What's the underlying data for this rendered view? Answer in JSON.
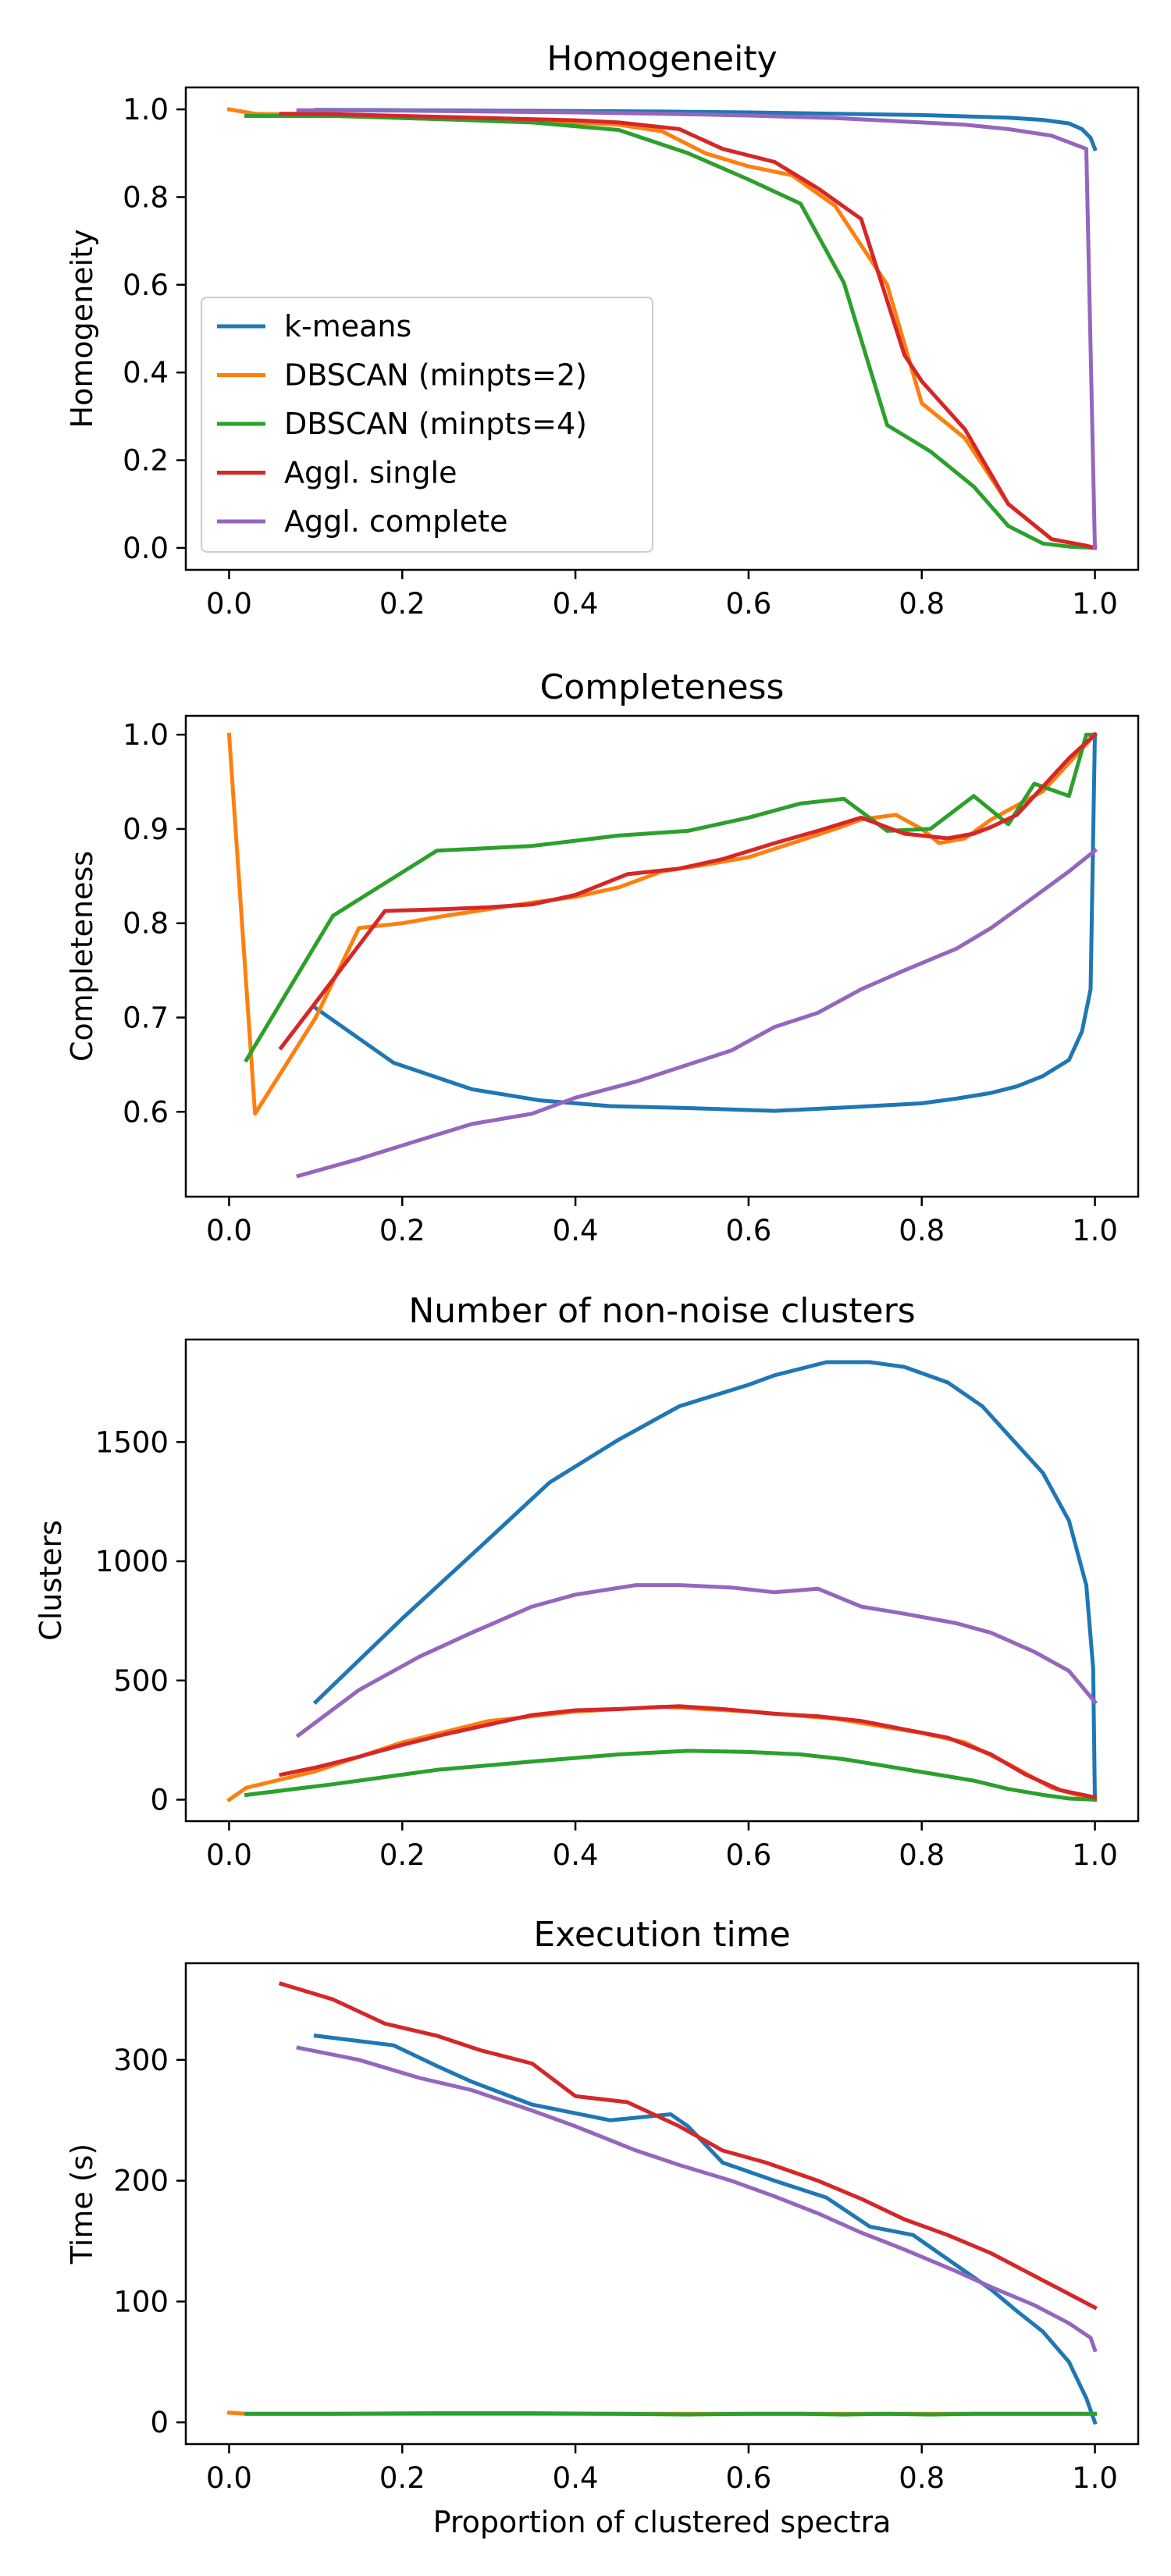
{
  "chart_data": [
    {
      "type": "line",
      "title": "Homogeneity",
      "xlabel": "",
      "ylabel": "Homogeneity",
      "xlim": [
        -0.05,
        1.05
      ],
      "ylim": [
        -0.05,
        1.05
      ],
      "xticks": [
        0.0,
        0.2,
        0.4,
        0.6,
        0.8,
        1.0
      ],
      "xtick_labels": [
        "0.0",
        "0.2",
        "0.4",
        "0.6",
        "0.8",
        "1.0"
      ],
      "yticks": [
        0.0,
        0.2,
        0.4,
        0.6,
        0.8,
        1.0
      ],
      "ytick_labels": [
        "0.0",
        "0.2",
        "0.4",
        "0.6",
        "0.8",
        "1.0"
      ],
      "grid": false,
      "legend": "center-left",
      "series": [
        {
          "name": "k-means",
          "color": "#1f77b4",
          "x": [
            0.1,
            0.2,
            0.3,
            0.4,
            0.5,
            0.6,
            0.7,
            0.8,
            0.9,
            0.94,
            0.97,
            0.985,
            0.995,
            1.0
          ],
          "y": [
            0.999,
            0.998,
            0.997,
            0.996,
            0.995,
            0.993,
            0.99,
            0.987,
            0.981,
            0.976,
            0.968,
            0.955,
            0.935,
            0.91
          ]
        },
        {
          "name": "DBSCAN (minpts=2)",
          "color": "#ff7f0e",
          "x": [
            0.0,
            0.03,
            0.15,
            0.2,
            0.3,
            0.35,
            0.4,
            0.45,
            0.5,
            0.55,
            0.6,
            0.65,
            0.7,
            0.72,
            0.76,
            0.8,
            0.85,
            0.9,
            0.95,
            1.0
          ],
          "y": [
            1.0,
            0.99,
            0.985,
            0.98,
            0.975,
            0.975,
            0.97,
            0.965,
            0.95,
            0.9,
            0.87,
            0.85,
            0.78,
            0.72,
            0.6,
            0.33,
            0.25,
            0.1,
            0.02,
            0.0
          ]
        },
        {
          "name": "DBSCAN (minpts=4)",
          "color": "#2ca02c",
          "x": [
            0.02,
            0.12,
            0.24,
            0.35,
            0.45,
            0.53,
            0.6,
            0.66,
            0.71,
            0.76,
            0.81,
            0.86,
            0.9,
            0.94,
            0.97,
            1.0
          ],
          "y": [
            0.985,
            0.985,
            0.978,
            0.97,
            0.953,
            0.9,
            0.84,
            0.785,
            0.605,
            0.28,
            0.22,
            0.14,
            0.05,
            0.01,
            0.003,
            0.0
          ]
        },
        {
          "name": "Aggl. single",
          "color": "#d62728",
          "x": [
            0.06,
            0.1,
            0.2,
            0.3,
            0.4,
            0.45,
            0.52,
            0.57,
            0.63,
            0.68,
            0.73,
            0.78,
            0.8,
            0.85,
            0.9,
            0.95,
            0.99,
            1.0
          ],
          "y": [
            0.99,
            0.99,
            0.985,
            0.98,
            0.975,
            0.97,
            0.955,
            0.91,
            0.88,
            0.82,
            0.75,
            0.44,
            0.38,
            0.27,
            0.1,
            0.02,
            0.005,
            0.0
          ]
        },
        {
          "name": "Aggl. complete",
          "color": "#9467bd",
          "x": [
            0.08,
            0.2,
            0.3,
            0.4,
            0.5,
            0.6,
            0.7,
            0.8,
            0.85,
            0.9,
            0.95,
            0.99,
            1.0
          ],
          "y": [
            0.998,
            0.997,
            0.995,
            0.993,
            0.99,
            0.986,
            0.98,
            0.97,
            0.965,
            0.955,
            0.94,
            0.91,
            0.0
          ]
        }
      ]
    },
    {
      "type": "line",
      "title": "Completeness",
      "xlabel": "",
      "ylabel": "Completeness",
      "xlim": [
        -0.05,
        1.05
      ],
      "ylim": [
        0.51,
        1.02
      ],
      "xticks": [
        0.0,
        0.2,
        0.4,
        0.6,
        0.8,
        1.0
      ],
      "xtick_labels": [
        "0.0",
        "0.2",
        "0.4",
        "0.6",
        "0.8",
        "1.0"
      ],
      "yticks": [
        0.6,
        0.7,
        0.8,
        0.9,
        1.0
      ],
      "ytick_labels": [
        "0.6",
        "0.7",
        "0.8",
        "0.9",
        "1.0"
      ],
      "grid": false,
      "series": [
        {
          "name": "k-means",
          "color": "#1f77b4",
          "x": [
            0.1,
            0.19,
            0.28,
            0.36,
            0.44,
            0.53,
            0.63,
            0.72,
            0.8,
            0.84,
            0.88,
            0.91,
            0.94,
            0.97,
            0.985,
            0.995,
            1.0
          ],
          "y": [
            0.71,
            0.652,
            0.624,
            0.612,
            0.606,
            0.604,
            0.601,
            0.605,
            0.609,
            0.614,
            0.62,
            0.627,
            0.638,
            0.655,
            0.685,
            0.73,
            1.0
          ]
        },
        {
          "name": "DBSCAN (minpts=2)",
          "color": "#ff7f0e",
          "x": [
            0.0,
            0.03,
            0.1,
            0.15,
            0.2,
            0.25,
            0.3,
            0.35,
            0.4,
            0.45,
            0.5,
            0.55,
            0.6,
            0.65,
            0.7,
            0.73,
            0.77,
            0.8,
            0.82,
            0.85,
            0.88,
            0.91,
            0.94,
            0.97,
            1.0
          ],
          "y": [
            1.0,
            0.598,
            0.7,
            0.795,
            0.8,
            0.808,
            0.815,
            0.822,
            0.828,
            0.838,
            0.855,
            0.862,
            0.87,
            0.885,
            0.9,
            0.91,
            0.915,
            0.9,
            0.885,
            0.89,
            0.91,
            0.925,
            0.94,
            0.97,
            1.0
          ]
        },
        {
          "name": "DBSCAN (minpts=4)",
          "color": "#2ca02c",
          "x": [
            0.02,
            0.12,
            0.24,
            0.35,
            0.45,
            0.53,
            0.6,
            0.66,
            0.71,
            0.76,
            0.81,
            0.86,
            0.9,
            0.93,
            0.97,
            0.99,
            1.0
          ],
          "y": [
            0.655,
            0.808,
            0.877,
            0.882,
            0.893,
            0.898,
            0.912,
            0.927,
            0.932,
            0.898,
            0.9,
            0.935,
            0.905,
            0.948,
            0.935,
            1.0,
            1.0
          ]
        },
        {
          "name": "Aggl. single",
          "color": "#d62728",
          "x": [
            0.06,
            0.1,
            0.18,
            0.25,
            0.3,
            0.35,
            0.4,
            0.46,
            0.52,
            0.57,
            0.63,
            0.68,
            0.73,
            0.78,
            0.8,
            0.83,
            0.86,
            0.88,
            0.91,
            0.94,
            0.97,
            1.0
          ],
          "y": [
            0.668,
            0.716,
            0.813,
            0.815,
            0.817,
            0.82,
            0.83,
            0.852,
            0.858,
            0.868,
            0.885,
            0.898,
            0.912,
            0.895,
            0.893,
            0.89,
            0.895,
            0.902,
            0.915,
            0.945,
            0.975,
            1.0
          ]
        },
        {
          "name": "Aggl. complete",
          "color": "#9467bd",
          "x": [
            0.08,
            0.15,
            0.22,
            0.28,
            0.35,
            0.4,
            0.47,
            0.52,
            0.58,
            0.63,
            0.68,
            0.73,
            0.78,
            0.84,
            0.88,
            0.93,
            0.97,
            1.0
          ],
          "y": [
            0.532,
            0.55,
            0.57,
            0.587,
            0.598,
            0.615,
            0.632,
            0.647,
            0.665,
            0.69,
            0.705,
            0.73,
            0.75,
            0.773,
            0.795,
            0.828,
            0.855,
            0.877
          ]
        }
      ]
    },
    {
      "type": "line",
      "title": "Number of non-noise clusters",
      "xlabel": "",
      "ylabel": "Clusters",
      "xlim": [
        -0.05,
        1.05
      ],
      "ylim": [
        -90,
        1930
      ],
      "xticks": [
        0.0,
        0.2,
        0.4,
        0.6,
        0.8,
        1.0
      ],
      "xtick_labels": [
        "0.0",
        "0.2",
        "0.4",
        "0.6",
        "0.8",
        "1.0"
      ],
      "yticks": [
        0,
        500,
        1000,
        1500
      ],
      "ytick_labels": [
        "0",
        "500",
        "1000",
        "1500"
      ],
      "grid": false,
      "series": [
        {
          "name": "k-means",
          "color": "#1f77b4",
          "x": [
            0.1,
            0.2,
            0.29,
            0.37,
            0.45,
            0.52,
            0.6,
            0.63,
            0.69,
            0.74,
            0.78,
            0.83,
            0.87,
            0.9,
            0.94,
            0.97,
            0.99,
            0.998,
            1.0
          ],
          "y": [
            410,
            760,
            1060,
            1330,
            1510,
            1650,
            1740,
            1780,
            1835,
            1835,
            1815,
            1750,
            1650,
            1530,
            1370,
            1170,
            900,
            550,
            0
          ]
        },
        {
          "name": "DBSCAN (minpts=2)",
          "color": "#ff7f0e",
          "x": [
            0.0,
            0.02,
            0.1,
            0.2,
            0.3,
            0.4,
            0.5,
            0.6,
            0.7,
            0.8,
            0.85,
            0.9,
            0.95,
            1.0
          ],
          "y": [
            0,
            50,
            120,
            240,
            330,
            370,
            390,
            370,
            340,
            280,
            240,
            150,
            50,
            0
          ]
        },
        {
          "name": "DBSCAN (minpts=4)",
          "color": "#2ca02c",
          "x": [
            0.02,
            0.12,
            0.24,
            0.35,
            0.45,
            0.53,
            0.6,
            0.66,
            0.71,
            0.76,
            0.81,
            0.86,
            0.9,
            0.94,
            0.97,
            1.0
          ],
          "y": [
            20,
            65,
            125,
            160,
            190,
            205,
            200,
            190,
            170,
            140,
            110,
            80,
            45,
            20,
            5,
            0
          ]
        },
        {
          "name": "Aggl. single",
          "color": "#d62728",
          "x": [
            0.06,
            0.1,
            0.15,
            0.2,
            0.25,
            0.3,
            0.35,
            0.4,
            0.45,
            0.52,
            0.57,
            0.63,
            0.68,
            0.73,
            0.78,
            0.83,
            0.88,
            0.92,
            0.96,
            1.0
          ],
          "y": [
            105,
            135,
            180,
            230,
            275,
            315,
            355,
            375,
            380,
            392,
            380,
            360,
            350,
            330,
            295,
            260,
            190,
            105,
            40,
            10
          ]
        },
        {
          "name": "Aggl. complete",
          "color": "#9467bd",
          "x": [
            0.08,
            0.15,
            0.22,
            0.28,
            0.35,
            0.4,
            0.47,
            0.52,
            0.58,
            0.63,
            0.68,
            0.73,
            0.78,
            0.84,
            0.88,
            0.93,
            0.97,
            1.0
          ],
          "y": [
            270,
            460,
            600,
            700,
            810,
            860,
            900,
            900,
            890,
            870,
            885,
            810,
            780,
            740,
            700,
            620,
            540,
            410
          ]
        }
      ]
    },
    {
      "type": "line",
      "title": "Execution time",
      "xlabel": "Proportion of clustered spectra",
      "ylabel": "Time (s)",
      "xlim": [
        -0.05,
        1.05
      ],
      "ylim": [
        -18,
        380
      ],
      "xticks": [
        0.0,
        0.2,
        0.4,
        0.6,
        0.8,
        1.0
      ],
      "xtick_labels": [
        "0.0",
        "0.2",
        "0.4",
        "0.6",
        "0.8",
        "1.0"
      ],
      "yticks": [
        0,
        100,
        200,
        300
      ],
      "ytick_labels": [
        "0",
        "100",
        "200",
        "300"
      ],
      "grid": false,
      "series": [
        {
          "name": "k-means",
          "color": "#1f77b4",
          "x": [
            0.1,
            0.19,
            0.24,
            0.28,
            0.35,
            0.44,
            0.51,
            0.53,
            0.57,
            0.63,
            0.69,
            0.74,
            0.79,
            0.84,
            0.88,
            0.91,
            0.94,
            0.97,
            0.99,
            1.0
          ],
          "y": [
            320,
            312,
            295,
            282,
            263,
            250,
            255,
            245,
            215,
            200,
            186,
            162,
            155,
            130,
            110,
            92,
            75,
            50,
            20,
            0
          ]
        },
        {
          "name": "DBSCAN (minpts=2)",
          "color": "#ff7f0e",
          "x": [
            0.0,
            0.02,
            0.2,
            0.4,
            0.6,
            0.8,
            1.0
          ],
          "y": [
            8,
            7,
            7,
            7,
            7,
            7,
            7
          ]
        },
        {
          "name": "DBSCAN (minpts=4)",
          "color": "#2ca02c",
          "x": [
            0.02,
            0.12,
            0.24,
            0.35,
            0.45,
            0.53,
            0.6,
            0.66,
            0.71,
            0.76,
            0.81,
            0.86,
            0.9,
            0.94,
            0.97,
            1.0
          ],
          "y": [
            7,
            7,
            7.5,
            7.5,
            7,
            6.5,
            7,
            7,
            6.5,
            7,
            6.5,
            7,
            7,
            7,
            7,
            7
          ]
        },
        {
          "name": "Aggl. single",
          "color": "#d62728",
          "x": [
            0.06,
            0.12,
            0.18,
            0.24,
            0.29,
            0.35,
            0.4,
            0.46,
            0.52,
            0.57,
            0.62,
            0.68,
            0.73,
            0.78,
            0.83,
            0.88,
            0.92,
            0.96,
            1.0
          ],
          "y": [
            363,
            350,
            330,
            320,
            308,
            297,
            270,
            265,
            245,
            225,
            215,
            200,
            185,
            168,
            155,
            140,
            125,
            110,
            95
          ]
        },
        {
          "name": "Aggl. complete",
          "color": "#9467bd",
          "x": [
            0.08,
            0.15,
            0.22,
            0.28,
            0.35,
            0.4,
            0.47,
            0.52,
            0.58,
            0.63,
            0.68,
            0.73,
            0.78,
            0.84,
            0.88,
            0.93,
            0.97,
            0.995,
            1.0
          ],
          "y": [
            310,
            300,
            285,
            275,
            258,
            245,
            225,
            213,
            200,
            187,
            173,
            157,
            143,
            125,
            112,
            97,
            82,
            70,
            60
          ]
        }
      ]
    }
  ]
}
